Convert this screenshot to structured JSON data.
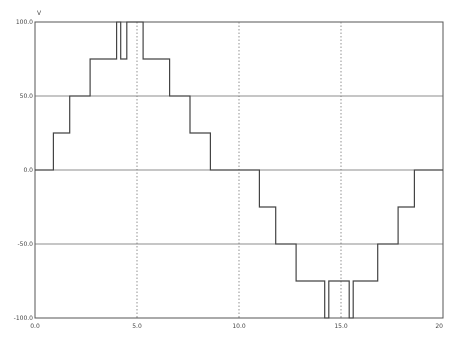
{
  "chart_data": {
    "type": "line",
    "title": "",
    "ylabel": "V",
    "xlabel": "",
    "xlim": [
      0,
      20
    ],
    "ylim": [
      -100,
      100
    ],
    "x_ticks": [
      0,
      5,
      10,
      15,
      20
    ],
    "x_tick_labels": [
      "0.0",
      "5.0",
      "10.0",
      "15.0",
      "20"
    ],
    "y_ticks": [
      100,
      50,
      0,
      -50,
      -100
    ],
    "y_tick_labels": [
      "100.0",
      "50.0",
      "0.0",
      "-50.0",
      "-100.0"
    ],
    "grid": true,
    "legend": "none",
    "series": [
      {
        "color": "#444444",
        "x": [
          0,
          0.9,
          0.9,
          1.7,
          1.7,
          2.7,
          2.7,
          4.0,
          4.0,
          4.2,
          4.2,
          4.5,
          4.5,
          5.3,
          5.3,
          5.6,
          5.6,
          6.6,
          6.6,
          7.6,
          7.6,
          8.6,
          8.6,
          10.0,
          11.0,
          11.0,
          11.8,
          11.8,
          12.8,
          12.8,
          14.2,
          14.2,
          14.4,
          14.4,
          15.4,
          15.4,
          15.6,
          15.6,
          16.8,
          16.8,
          17.8,
          17.8,
          18.6,
          18.6,
          20.0
        ],
        "y": [
          0,
          0,
          25,
          25,
          50,
          50,
          75,
          75,
          100,
          100,
          75,
          75,
          100,
          100,
          75,
          75,
          75,
          75,
          50,
          50,
          25,
          25,
          0,
          0,
          0,
          -25,
          -25,
          -50,
          -50,
          -75,
          -75,
          -100,
          -100,
          -75,
          -75,
          -100,
          -100,
          -75,
          -75,
          -50,
          -50,
          -25,
          -25,
          0,
          0
        ]
      }
    ]
  }
}
